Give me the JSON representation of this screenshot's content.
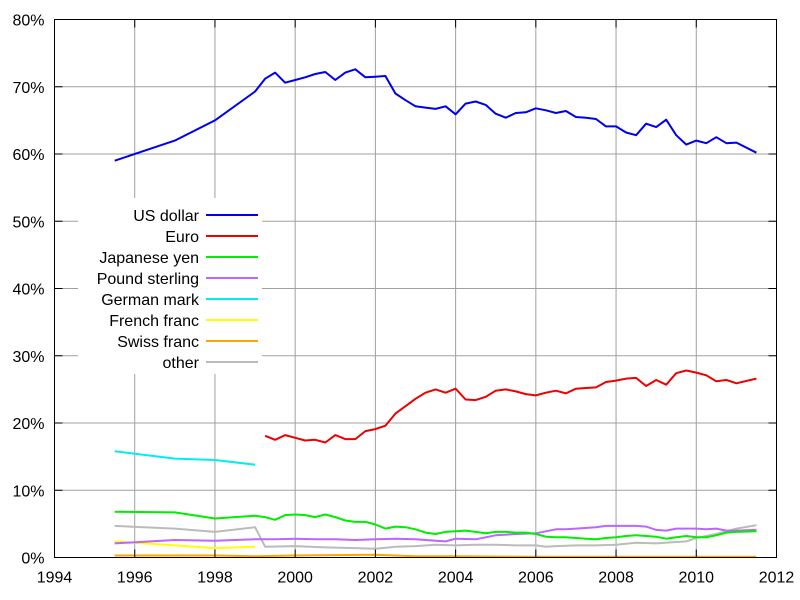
{
  "chart_data": {
    "type": "line",
    "title": "",
    "xlabel": "",
    "ylabel": "",
    "xlim": [
      1994,
      2012
    ],
    "ylim": [
      0,
      80
    ],
    "x_ticks": [
      "1994",
      "1996",
      "1998",
      "2000",
      "2002",
      "2004",
      "2006",
      "2008",
      "2010",
      "2012"
    ],
    "y_ticks": [
      "0%",
      "10%",
      "20%",
      "30%",
      "40%",
      "50%",
      "60%",
      "70%",
      "80%"
    ],
    "grid": true,
    "legend_position": "left, mid-upper",
    "series": [
      {
        "name": "US dollar",
        "color": "#0000ee",
        "points": [
          [
            1995.5,
            59.0
          ],
          [
            1997.0,
            62.0
          ],
          [
            1998.0,
            65.0
          ],
          [
            1999.0,
            69.3
          ],
          [
            1999.25,
            71.2
          ],
          [
            1999.5,
            72.1
          ],
          [
            1999.75,
            70.6
          ],
          [
            2000.0,
            71.0
          ],
          [
            2000.25,
            71.4
          ],
          [
            2000.5,
            71.9
          ],
          [
            2000.75,
            72.2
          ],
          [
            2001.0,
            71.0
          ],
          [
            2001.25,
            72.1
          ],
          [
            2001.5,
            72.6
          ],
          [
            2001.75,
            71.4
          ],
          [
            2002.0,
            71.5
          ],
          [
            2002.25,
            71.6
          ],
          [
            2002.5,
            69.0
          ],
          [
            2002.75,
            68.0
          ],
          [
            2003.0,
            67.1
          ],
          [
            2003.25,
            66.9
          ],
          [
            2003.5,
            66.7
          ],
          [
            2003.75,
            67.1
          ],
          [
            2004.0,
            65.9
          ],
          [
            2004.25,
            67.5
          ],
          [
            2004.5,
            67.8
          ],
          [
            2004.75,
            67.3
          ],
          [
            2005.0,
            66.0
          ],
          [
            2005.25,
            65.4
          ],
          [
            2005.5,
            66.1
          ],
          [
            2005.75,
            66.2
          ],
          [
            2006.0,
            66.8
          ],
          [
            2006.25,
            66.5
          ],
          [
            2006.5,
            66.1
          ],
          [
            2006.75,
            66.4
          ],
          [
            2007.0,
            65.5
          ],
          [
            2007.25,
            65.4
          ],
          [
            2007.5,
            65.2
          ],
          [
            2007.75,
            64.1
          ],
          [
            2008.0,
            64.1
          ],
          [
            2008.25,
            63.2
          ],
          [
            2008.5,
            62.8
          ],
          [
            2008.75,
            64.5
          ],
          [
            2009.0,
            64.0
          ],
          [
            2009.25,
            65.1
          ],
          [
            2009.5,
            62.8
          ],
          [
            2009.75,
            61.4
          ],
          [
            2010.0,
            62.0
          ],
          [
            2010.25,
            61.6
          ],
          [
            2010.5,
            62.5
          ],
          [
            2010.75,
            61.6
          ],
          [
            2011.0,
            61.7
          ],
          [
            2011.5,
            60.2
          ]
        ]
      },
      {
        "name": "Euro",
        "color": "#ee0000",
        "points": [
          [
            1999.25,
            18.1
          ],
          [
            1999.5,
            17.5
          ],
          [
            1999.75,
            18.2
          ],
          [
            2000.0,
            17.8
          ],
          [
            2000.25,
            17.4
          ],
          [
            2000.5,
            17.5
          ],
          [
            2000.75,
            17.1
          ],
          [
            2001.0,
            18.2
          ],
          [
            2001.25,
            17.6
          ],
          [
            2001.5,
            17.6
          ],
          [
            2001.75,
            18.8
          ],
          [
            2002.0,
            19.1
          ],
          [
            2002.25,
            19.6
          ],
          [
            2002.5,
            21.4
          ],
          [
            2002.75,
            22.5
          ],
          [
            2003.0,
            23.6
          ],
          [
            2003.25,
            24.5
          ],
          [
            2003.5,
            25.0
          ],
          [
            2003.75,
            24.5
          ],
          [
            2004.0,
            25.1
          ],
          [
            2004.25,
            23.5
          ],
          [
            2004.5,
            23.4
          ],
          [
            2004.75,
            23.9
          ],
          [
            2005.0,
            24.8
          ],
          [
            2005.25,
            25.0
          ],
          [
            2005.5,
            24.7
          ],
          [
            2005.75,
            24.3
          ],
          [
            2006.0,
            24.1
          ],
          [
            2006.25,
            24.5
          ],
          [
            2006.5,
            24.8
          ],
          [
            2006.75,
            24.4
          ],
          [
            2007.0,
            25.1
          ],
          [
            2007.25,
            25.2
          ],
          [
            2007.5,
            25.3
          ],
          [
            2007.75,
            26.1
          ],
          [
            2008.0,
            26.3
          ],
          [
            2008.25,
            26.6
          ],
          [
            2008.5,
            26.7
          ],
          [
            2008.75,
            25.5
          ],
          [
            2009.0,
            26.4
          ],
          [
            2009.25,
            25.7
          ],
          [
            2009.5,
            27.4
          ],
          [
            2009.75,
            27.8
          ],
          [
            2010.0,
            27.5
          ],
          [
            2010.25,
            27.1
          ],
          [
            2010.5,
            26.2
          ],
          [
            2010.75,
            26.4
          ],
          [
            2011.0,
            25.9
          ],
          [
            2011.5,
            26.6
          ]
        ]
      },
      {
        "name": "Japanese yen",
        "color": "#00ee00",
        "points": [
          [
            1995.5,
            6.8
          ],
          [
            1997.0,
            6.7
          ],
          [
            1998.0,
            5.8
          ],
          [
            1999.0,
            6.2
          ],
          [
            1999.25,
            6.0
          ],
          [
            1999.5,
            5.6
          ],
          [
            1999.75,
            6.3
          ],
          [
            2000.0,
            6.4
          ],
          [
            2000.25,
            6.3
          ],
          [
            2000.5,
            6.0
          ],
          [
            2000.75,
            6.4
          ],
          [
            2001.0,
            6.0
          ],
          [
            2001.25,
            5.5
          ],
          [
            2001.5,
            5.3
          ],
          [
            2001.75,
            5.3
          ],
          [
            2002.0,
            4.9
          ],
          [
            2002.25,
            4.3
          ],
          [
            2002.5,
            4.6
          ],
          [
            2002.75,
            4.5
          ],
          [
            2003.0,
            4.2
          ],
          [
            2003.25,
            3.7
          ],
          [
            2003.5,
            3.5
          ],
          [
            2003.75,
            3.8
          ],
          [
            2004.0,
            3.9
          ],
          [
            2004.25,
            4.0
          ],
          [
            2004.5,
            3.8
          ],
          [
            2004.75,
            3.6
          ],
          [
            2005.0,
            3.8
          ],
          [
            2005.25,
            3.8
          ],
          [
            2005.5,
            3.7
          ],
          [
            2005.75,
            3.7
          ],
          [
            2006.0,
            3.5
          ],
          [
            2006.25,
            3.1
          ],
          [
            2006.5,
            3.0
          ],
          [
            2006.75,
            3.0
          ],
          [
            2007.0,
            2.9
          ],
          [
            2007.25,
            2.8
          ],
          [
            2007.5,
            2.7
          ],
          [
            2007.75,
            2.9
          ],
          [
            2008.0,
            3.0
          ],
          [
            2008.25,
            3.2
          ],
          [
            2008.5,
            3.3
          ],
          [
            2008.75,
            3.2
          ],
          [
            2009.0,
            3.1
          ],
          [
            2009.25,
            2.8
          ],
          [
            2009.5,
            3.0
          ],
          [
            2009.75,
            3.2
          ],
          [
            2010.0,
            3.0
          ],
          [
            2010.25,
            3.0
          ],
          [
            2010.5,
            3.3
          ],
          [
            2010.75,
            3.7
          ],
          [
            2011.0,
            3.8
          ],
          [
            2011.5,
            3.9
          ]
        ]
      },
      {
        "name": "Pound sterling",
        "color": "#bb66ff",
        "points": [
          [
            1995.5,
            2.1
          ],
          [
            1997.0,
            2.6
          ],
          [
            1998.0,
            2.5
          ],
          [
            1999.0,
            2.7
          ],
          [
            1999.5,
            2.7
          ],
          [
            2000.0,
            2.8
          ],
          [
            2000.5,
            2.7
          ],
          [
            2001.0,
            2.7
          ],
          [
            2001.5,
            2.6
          ],
          [
            2002.0,
            2.7
          ],
          [
            2002.5,
            2.8
          ],
          [
            2003.0,
            2.7
          ],
          [
            2003.5,
            2.5
          ],
          [
            2003.75,
            2.4
          ],
          [
            2004.0,
            2.8
          ],
          [
            2004.5,
            2.7
          ],
          [
            2004.75,
            3.0
          ],
          [
            2005.0,
            3.3
          ],
          [
            2005.5,
            3.5
          ],
          [
            2006.0,
            3.6
          ],
          [
            2006.25,
            3.9
          ],
          [
            2006.5,
            4.2
          ],
          [
            2006.75,
            4.2
          ],
          [
            2007.0,
            4.3
          ],
          [
            2007.5,
            4.5
          ],
          [
            2007.75,
            4.7
          ],
          [
            2008.0,
            4.7
          ],
          [
            2008.5,
            4.7
          ],
          [
            2008.75,
            4.6
          ],
          [
            2009.0,
            4.1
          ],
          [
            2009.25,
            4.0
          ],
          [
            2009.5,
            4.3
          ],
          [
            2010.0,
            4.3
          ],
          [
            2010.25,
            4.2
          ],
          [
            2010.5,
            4.3
          ],
          [
            2010.75,
            4.0
          ],
          [
            2011.0,
            4.0
          ],
          [
            2011.5,
            4.1
          ]
        ]
      },
      {
        "name": "German mark",
        "color": "#00eeee",
        "points": [
          [
            1995.5,
            15.8
          ],
          [
            1997.0,
            14.7
          ],
          [
            1998.0,
            14.5
          ],
          [
            1999.0,
            13.8
          ]
        ]
      },
      {
        "name": "French franc",
        "color": "#ffff00",
        "points": [
          [
            1995.5,
            2.4
          ],
          [
            1997.0,
            1.8
          ],
          [
            1998.0,
            1.4
          ],
          [
            1999.0,
            1.6
          ]
        ]
      },
      {
        "name": "Swiss franc",
        "color": "#ffa500",
        "points": [
          [
            1995.5,
            0.3
          ],
          [
            1997.0,
            0.3
          ],
          [
            1998.0,
            0.3
          ],
          [
            1999.0,
            0.2
          ],
          [
            2000.0,
            0.3
          ],
          [
            2002.0,
            0.4
          ],
          [
            2003.0,
            0.2
          ],
          [
            2004.0,
            0.2
          ],
          [
            2006.0,
            0.1
          ],
          [
            2008.0,
            0.1
          ],
          [
            2010.0,
            0.1
          ],
          [
            2011.5,
            0.1
          ]
        ]
      },
      {
        "name": "other",
        "color": "#bbbbbb",
        "points": [
          [
            1995.5,
            4.7
          ],
          [
            1997.0,
            4.3
          ],
          [
            1998.0,
            3.8
          ],
          [
            1999.0,
            4.5
          ],
          [
            1999.25,
            1.6
          ],
          [
            2000.0,
            1.7
          ],
          [
            2000.75,
            1.5
          ],
          [
            2001.5,
            1.4
          ],
          [
            2002.0,
            1.3
          ],
          [
            2002.5,
            1.6
          ],
          [
            2003.0,
            1.7
          ],
          [
            2003.5,
            1.9
          ],
          [
            2004.0,
            1.8
          ],
          [
            2004.5,
            1.9
          ],
          [
            2005.0,
            1.9
          ],
          [
            2005.5,
            1.8
          ],
          [
            2006.0,
            1.8
          ],
          [
            2006.25,
            1.6
          ],
          [
            2006.5,
            1.7
          ],
          [
            2007.0,
            1.8
          ],
          [
            2007.5,
            1.8
          ],
          [
            2008.0,
            1.9
          ],
          [
            2008.5,
            2.2
          ],
          [
            2009.0,
            2.1
          ],
          [
            2009.5,
            2.3
          ],
          [
            2009.75,
            2.4
          ],
          [
            2010.0,
            2.9
          ],
          [
            2010.5,
            3.5
          ],
          [
            2011.0,
            4.3
          ],
          [
            2011.5,
            4.8
          ]
        ]
      }
    ]
  }
}
